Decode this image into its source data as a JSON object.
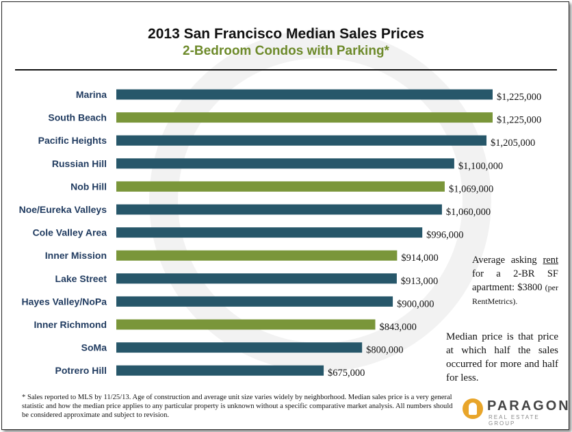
{
  "chart_data": {
    "type": "bar",
    "orientation": "horizontal",
    "title": "2013 San Francisco Median Sales Prices",
    "subtitle": "2-Bedroom Condos with Parking*",
    "categories": [
      "Marina",
      "South Beach",
      "Pacific Heights",
      "Russian Hill",
      "Nob Hill",
      "Noe/Eureka Valleys",
      "Cole Valley Area",
      "Inner Mission",
      "Lake Street",
      "Hayes Valley/NoPa",
      "Inner Richmond",
      "SoMa",
      "Potrero Hill"
    ],
    "values": [
      1225000,
      1225000,
      1205000,
      1100000,
      1069000,
      1060000,
      996000,
      914000,
      913000,
      900000,
      843000,
      800000,
      675000
    ],
    "value_labels": [
      "$1,225,000",
      "$1,225,000",
      "$1,205,000",
      "$1,100,000",
      "$1,069,000",
      "$1,060,000",
      "$996,000",
      "$914,000",
      "$913,000",
      "$900,000",
      "$843,000",
      "$800,000",
      "$675,000"
    ],
    "bar_colors": [
      "#27576a",
      "#7a963a",
      "#27576a",
      "#27576a",
      "#7a963a",
      "#27576a",
      "#27576a",
      "#7a963a",
      "#27576a",
      "#27576a",
      "#7a963a",
      "#27576a",
      "#27576a"
    ],
    "xlim": [
      0,
      1225000
    ],
    "grid": false,
    "legend": "none"
  },
  "notes": {
    "rent_prefix": "Average asking",
    "rent_word": "rent",
    "rent_rest": "for a 2-BR SF apartment: $3800",
    "rent_source": "(per RentMetrics).",
    "median": "Median price is that price at which half the sales occurred for more and half for less."
  },
  "footnote": "* Sales reported to MLS by 11/25/13.  Age of construction and average unit size varies widely by neighborhood. Median sales price is a very general statistic and how the median price applies to any particular property is unknown without a specific comparative market analysis. All numbers should be considered approximate and subject to revision.",
  "logo": {
    "name": "PARAGON",
    "tagline": "REAL ESTATE GROUP"
  },
  "colors": {
    "teal": "#27576a",
    "green": "#7a963a",
    "label": "#1f3a5f"
  }
}
